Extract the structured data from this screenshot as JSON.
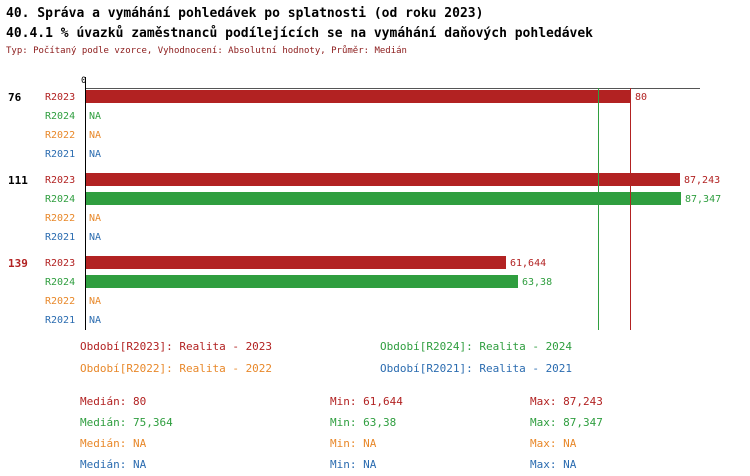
{
  "header": {
    "title_line1": "40. Správa a vymáhání pohledávek po splatnosti (od roku 2023)",
    "title_line2": "40.4.1 % úvazků zaměstnanců podílejících se na vymáhání daňových pohledávek",
    "subtitle": "Typ: Počítaný podle vzorce, Vyhodnocení: Absolutní hodnoty, Průměr: Medián"
  },
  "colors": {
    "r2023": "#b22222",
    "r2024": "#2f9e3f",
    "r2022": "#e8882a",
    "r2021": "#2b6cb0",
    "axis": "#000000",
    "topline": "#555555"
  },
  "chart_data": {
    "type": "bar",
    "orientation": "horizontal",
    "x_axis": {
      "zero_label": "0",
      "min": 0,
      "max": 90
    },
    "series_order": [
      "R2023",
      "R2024",
      "R2022",
      "R2021"
    ],
    "groups": [
      {
        "id": "76",
        "id_color": "#000000",
        "rows": [
          {
            "series": "r2023",
            "period": "R2023",
            "value": 80,
            "label": "80"
          },
          {
            "series": "r2024",
            "period": "R2024",
            "value": null,
            "label": "NA"
          },
          {
            "series": "r2022",
            "period": "R2022",
            "value": null,
            "label": "NA"
          },
          {
            "series": "r2021",
            "period": "R2021",
            "value": null,
            "label": "NA"
          }
        ]
      },
      {
        "id": "111",
        "id_color": "#000000",
        "rows": [
          {
            "series": "r2023",
            "period": "R2023",
            "value": 87.243,
            "label": "87,243"
          },
          {
            "series": "r2024",
            "period": "R2024",
            "value": 87.347,
            "label": "87,347"
          },
          {
            "series": "r2022",
            "period": "R2022",
            "value": null,
            "label": "NA"
          },
          {
            "series": "r2021",
            "period": "R2021",
            "value": null,
            "label": "NA"
          }
        ]
      },
      {
        "id": "139",
        "id_color": "#b22222",
        "rows": [
          {
            "series": "r2023",
            "period": "R2023",
            "value": 61.644,
            "label": "61,644"
          },
          {
            "series": "r2024",
            "period": "R2024",
            "value": 63.38,
            "label": "63,38"
          },
          {
            "series": "r2022",
            "period": "R2022",
            "value": null,
            "label": "NA"
          },
          {
            "series": "r2021",
            "period": "R2021",
            "value": null,
            "label": "NA"
          }
        ]
      }
    ],
    "reference_lines": [
      {
        "series": "r2023",
        "value": 80
      },
      {
        "series": "r2024",
        "value": 75.364
      }
    ]
  },
  "legend": {
    "items": [
      {
        "series": "r2023",
        "label": "Období[R2023]: Realita - 2023"
      },
      {
        "series": "r2024",
        "label": "Období[R2024]: Realita - 2024"
      },
      {
        "series": "r2022",
        "label": "Období[R2022]: Realita - 2022"
      },
      {
        "series": "r2021",
        "label": "Období[R2021]: Realita - 2021"
      }
    ]
  },
  "stats": {
    "rows": [
      {
        "series": "r2023",
        "median": "Medián: 80",
        "min": "Min: 61,644",
        "max": "Max: 87,243"
      },
      {
        "series": "r2024",
        "median": "Medián: 75,364",
        "min": "Min: 63,38",
        "max": "Max: 87,347"
      },
      {
        "series": "r2022",
        "median": "Medián: NA",
        "min": "Min: NA",
        "max": "Max: NA"
      },
      {
        "series": "r2021",
        "median": "Medián: NA",
        "min": "Min: NA",
        "max": "Max: NA"
      }
    ]
  }
}
